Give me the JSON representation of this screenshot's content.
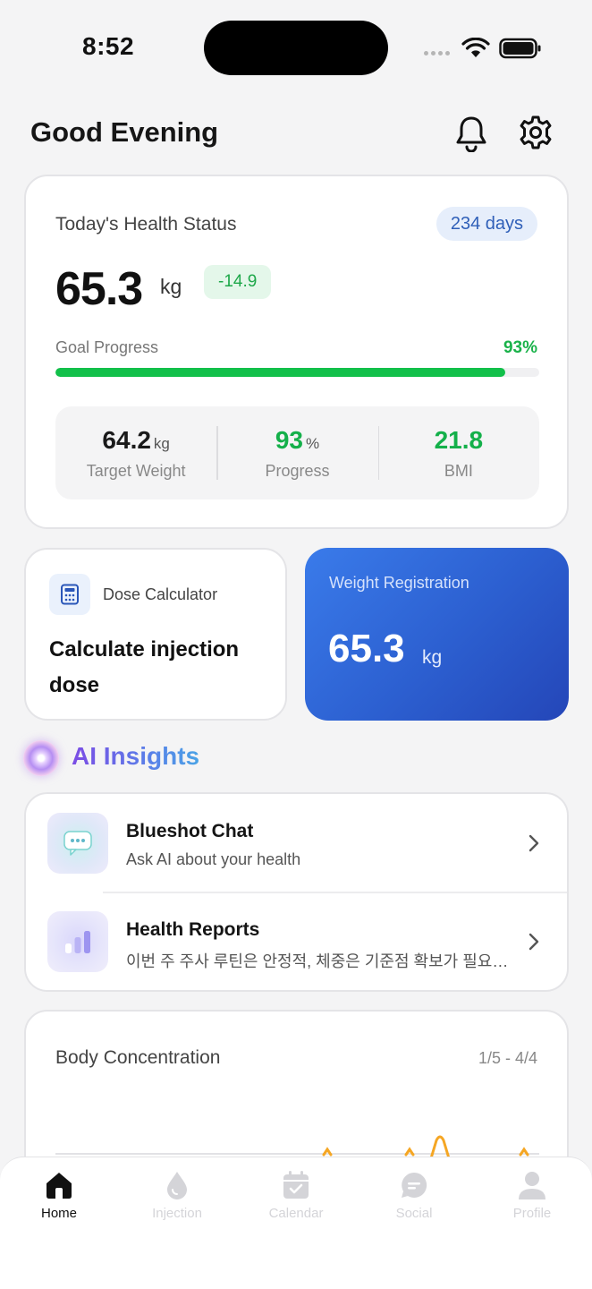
{
  "status_bar": {
    "time": "8:52"
  },
  "header": {
    "greeting": "Good Evening"
  },
  "health_status": {
    "title": "Today's Health Status",
    "days_badge": "234 days",
    "weight": "65.3",
    "unit": "kg",
    "change": "-14.9",
    "goal_label": "Goal Progress",
    "goal_percent": "93%",
    "goal_progress_fraction": 0.93,
    "stats": [
      {
        "value": "64.2",
        "unit": "kg",
        "label": "Target Weight"
      },
      {
        "value": "93",
        "unit": "%",
        "label": "Progress"
      },
      {
        "value": "21.8",
        "unit": "",
        "label": "BMI"
      }
    ]
  },
  "dose_calculator": {
    "title": "Dose Calculator",
    "text": "Calculate injection dose"
  },
  "weight_registration": {
    "title": "Weight Registration",
    "value": "65.3",
    "unit": "kg"
  },
  "ai_insights": {
    "title": "AI Insights",
    "items": [
      {
        "title": "Blueshot Chat",
        "subtitle": "Ask AI about your health"
      },
      {
        "title": "Health Reports",
        "subtitle": "이번 주 주사 루틴은 안정적, 체중은 기준점 확보가 필요해요"
      }
    ]
  },
  "body_concentration": {
    "title": "Body Concentration",
    "range": "1/5 - 4/4"
  },
  "tab_bar": {
    "tabs": [
      {
        "label": "Home"
      },
      {
        "label": "Injection"
      },
      {
        "label": "Calendar"
      },
      {
        "label": "Social"
      },
      {
        "label": "Profile"
      }
    ]
  },
  "colors": {
    "accent_green": "#12c04a",
    "accent_blue": "#2c5fd0",
    "chart_orange": "#f5a623"
  }
}
